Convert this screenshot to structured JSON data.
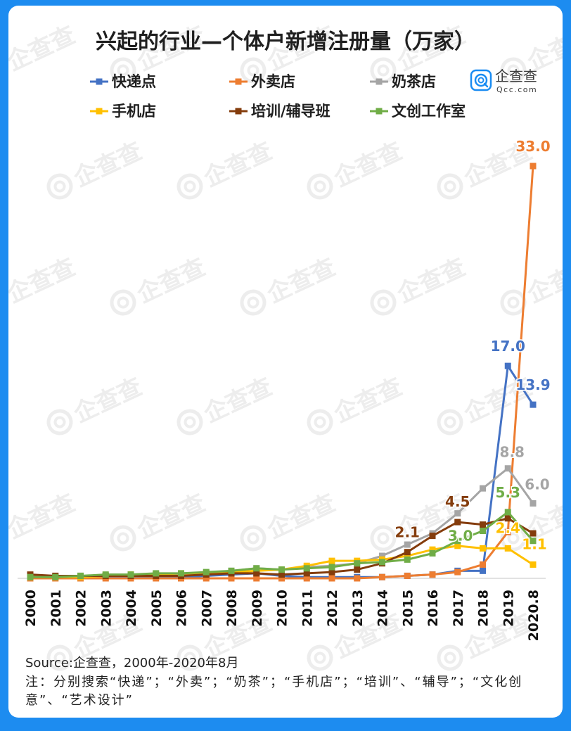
{
  "logo": {
    "name": "企查查",
    "domain": "Qcc.com",
    "icon": "qcc-logo-icon"
  },
  "watermark": "企查查",
  "source": "Source:企查查，2000年-2020年8月",
  "note": "注：分别搜索“快递”；“外卖”；“奶茶”；“手机店”；“培训”、“辅导”；“文化创意”、“艺术设计”",
  "colors": {
    "frame": "#1d8cf0",
    "axis": "#d9d9d9",
    "logo": "#1a8cf2",
    "watermark": "#ededed"
  },
  "chart_data": {
    "type": "line",
    "title": "兴起的行业—个体户新增注册量（万家）",
    "categories": [
      "2000",
      "2001",
      "2002",
      "2003",
      "2004",
      "2005",
      "2006",
      "2007",
      "2008",
      "2009",
      "2010",
      "2011",
      "2012",
      "2013",
      "2014",
      "2015",
      "2016",
      "2017",
      "2018",
      "2019",
      "2020.8"
    ],
    "series": [
      {
        "name": "快递点",
        "color": "#4472C4",
        "values": [
          0.1,
          0.1,
          0.1,
          0.1,
          0.1,
          0.1,
          0.1,
          0.2,
          0.3,
          0.4,
          0.2,
          0.1,
          0.1,
          0.1,
          0.1,
          0.2,
          0.3,
          0.6,
          0.6,
          17.0,
          13.9
        ]
      },
      {
        "name": "外卖店",
        "color": "#ED7D31",
        "values": [
          0.0,
          0.0,
          0.0,
          0.0,
          0.0,
          0.0,
          0.0,
          0.0,
          0.0,
          0.0,
          0.0,
          0.0,
          0.0,
          0.0,
          0.1,
          0.2,
          0.3,
          0.5,
          1.1,
          3.7,
          33.0
        ]
      },
      {
        "name": "奶茶店",
        "color": "#A5A5A5",
        "values": [
          0.1,
          0.1,
          0.1,
          0.2,
          0.2,
          0.3,
          0.3,
          0.4,
          0.6,
          0.8,
          0.7,
          0.9,
          1.0,
          1.2,
          1.8,
          2.7,
          3.6,
          5.2,
          7.2,
          8.8,
          6.0
        ]
      },
      {
        "name": "手机店",
        "color": "#FFC000",
        "values": [
          0.1,
          0.1,
          0.1,
          0.2,
          0.3,
          0.3,
          0.4,
          0.4,
          0.5,
          0.6,
          0.7,
          1.0,
          1.4,
          1.4,
          1.5,
          1.8,
          2.3,
          2.6,
          2.4,
          2.4,
          1.1
        ]
      },
      {
        "name": "培训/辅导班",
        "color": "#843C0C",
        "values": [
          0.3,
          0.2,
          0.2,
          0.2,
          0.2,
          0.2,
          0.2,
          0.3,
          0.4,
          0.4,
          0.3,
          0.4,
          0.5,
          0.7,
          1.2,
          2.1,
          3.4,
          4.5,
          4.3,
          4.8,
          3.6
        ]
      },
      {
        "name": "文创工作室",
        "color": "#70AD47",
        "values": [
          0.1,
          0.1,
          0.2,
          0.3,
          0.3,
          0.4,
          0.4,
          0.5,
          0.6,
          0.8,
          0.7,
          0.8,
          0.9,
          1.2,
          1.3,
          1.5,
          2.0,
          3.0,
          3.8,
          5.3,
          3.0
        ]
      }
    ],
    "ylim": [
      0,
      33
    ],
    "grid": false,
    "legend": "top",
    "data_labels": [
      {
        "series": "外卖店",
        "x": "2020.8",
        "text": "33.0"
      },
      {
        "series": "快递点",
        "x": "2019",
        "text": "17.0"
      },
      {
        "series": "快递点",
        "x": "2020.8",
        "text": "13.9"
      },
      {
        "series": "奶茶店",
        "x": "2019",
        "text": "8.8"
      },
      {
        "series": "奶茶店",
        "x": "2020.8",
        "text": "6.0"
      },
      {
        "series": "培训/辅导班",
        "x": "2017",
        "text": "4.5"
      },
      {
        "series": "培训/辅导班",
        "x": "2015",
        "text": "2.1"
      },
      {
        "series": "文创工作室",
        "x": "2017",
        "text": "3.0"
      },
      {
        "series": "文创工作室",
        "x": "2019",
        "text": "5.3"
      },
      {
        "series": "手机店",
        "x": "2019",
        "text": "2.4"
      },
      {
        "series": "手机店",
        "x": "2020.8",
        "text": "1.1"
      }
    ]
  }
}
